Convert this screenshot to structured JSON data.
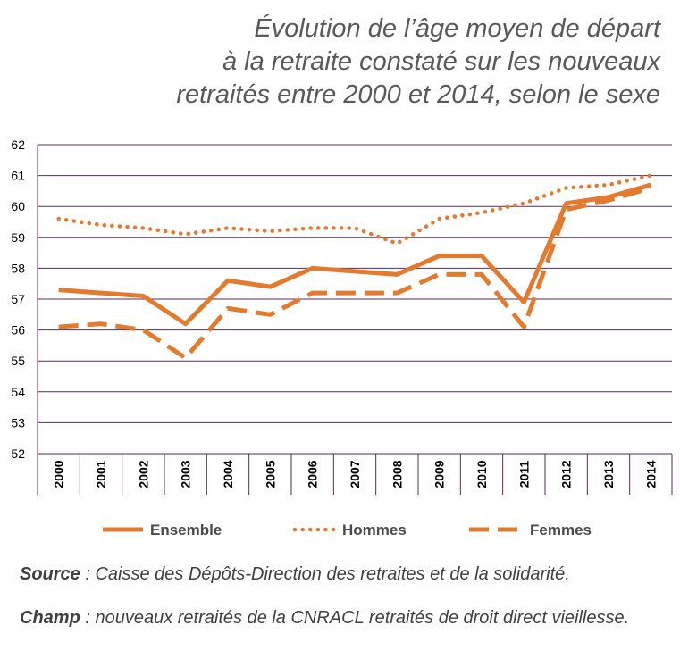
{
  "title_lines": [
    "Évolution de l’âge moyen de départ",
    "à la retraite constaté sur les nouveaux",
    "retraités entre 2000 et 2014, selon le sexe"
  ],
  "chart_data": {
    "type": "line",
    "x": [
      "2000",
      "2001",
      "2002",
      "2003",
      "2004",
      "2005",
      "2006",
      "2007",
      "2008",
      "2009",
      "2010",
      "2011",
      "2012",
      "2013",
      "2014"
    ],
    "ylim": [
      52,
      62
    ],
    "yticks": [
      52,
      53,
      54,
      55,
      56,
      57,
      58,
      59,
      60,
      61,
      62
    ],
    "grid": true,
    "legend_position": "bottom",
    "series": [
      {
        "name": "Ensemble",
        "style": "solid",
        "color": "#e37a2e",
        "values": [
          57.3,
          57.2,
          57.1,
          56.2,
          57.6,
          57.4,
          58.0,
          57.9,
          57.8,
          58.4,
          58.4,
          56.9,
          60.1,
          60.3,
          60.7
        ]
      },
      {
        "name": "Hommes",
        "style": "dotted",
        "color": "#e37a2e",
        "values": [
          59.6,
          59.4,
          59.3,
          59.1,
          59.3,
          59.2,
          59.3,
          59.3,
          58.8,
          59.6,
          59.8,
          60.1,
          60.6,
          60.7,
          61.0
        ]
      },
      {
        "name": "Femmes",
        "style": "dashed",
        "color": "#e37a2e",
        "values": [
          56.1,
          56.2,
          56.0,
          55.1,
          56.7,
          56.5,
          57.2,
          57.2,
          57.2,
          57.8,
          57.8,
          56.1,
          59.9,
          60.2,
          60.6
        ]
      }
    ]
  },
  "source": {
    "label": "Source",
    "text": " : Caisse des Dépôts-Direction des retraites et de la solidarité."
  },
  "champ": {
    "label": "Champ",
    "text": " : nouveaux retraités de la CNRACL retraités de droit direct vieillesse."
  },
  "colors": {
    "grid": "#5a2a5e",
    "line": "#e37a2e",
    "title": "#595959"
  }
}
